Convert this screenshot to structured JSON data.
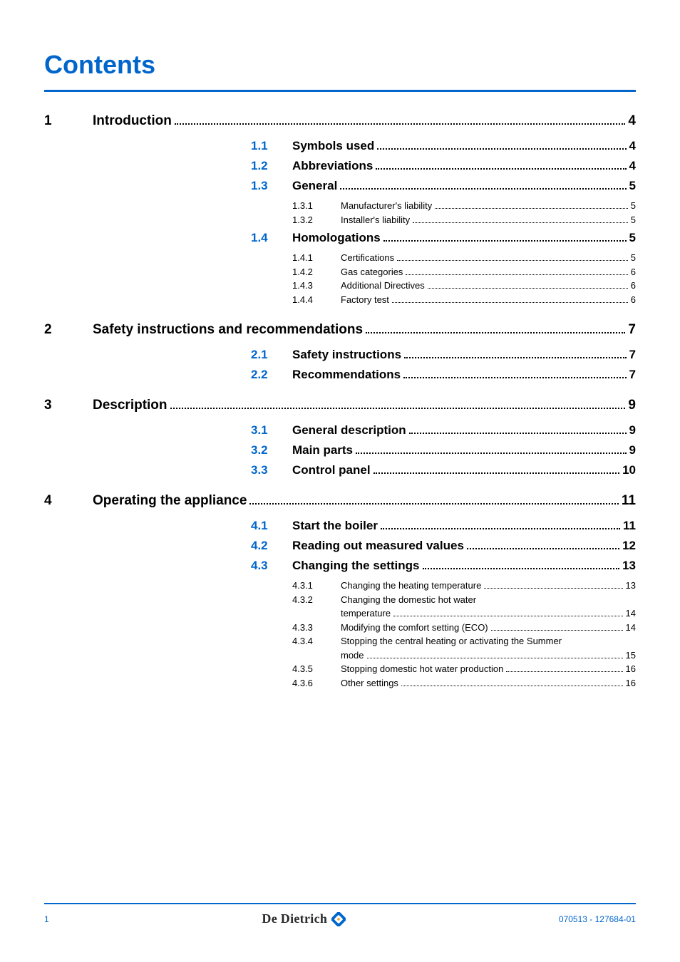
{
  "title": "Contents",
  "colors": {
    "accent": "#0066cc",
    "text": "#000000",
    "background": "#ffffff"
  },
  "typography": {
    "title_fontsize": 36,
    "lvl1_fontsize": 19,
    "lvl2_fontsize": 17,
    "lvl3_fontsize": 13,
    "footer_fontsize": 12,
    "brand_fontsize": 18
  },
  "toc": {
    "chapters": [
      {
        "num": "1",
        "label": "Introduction",
        "page": "4",
        "sections": [
          {
            "num": "1.1",
            "label": "Symbols used",
            "page": "4",
            "subs": []
          },
          {
            "num": "1.2",
            "label": "Abbreviations",
            "page": "4",
            "subs": []
          },
          {
            "num": "1.3",
            "label": "General",
            "page": "5",
            "subs": [
              {
                "num": "1.3.1",
                "label": "Manufacturer's liability",
                "page": "5"
              },
              {
                "num": "1.3.2",
                "label": "Installer's liability",
                "page": "5"
              }
            ]
          },
          {
            "num": "1.4",
            "label": "Homologations",
            "page": "5",
            "subs": [
              {
                "num": "1.4.1",
                "label": "Certifications",
                "page": "5"
              },
              {
                "num": "1.4.2",
                "label": "Gas categories",
                "page": "6"
              },
              {
                "num": "1.4.3",
                "label": "Additional Directives",
                "page": "6"
              },
              {
                "num": "1.4.4",
                "label": "Factory test",
                "page": "6"
              }
            ]
          }
        ]
      },
      {
        "num": "2",
        "label": "Safety instructions and recommendations",
        "page": "7",
        "sections": [
          {
            "num": "2.1",
            "label": "Safety instructions",
            "page": "7",
            "subs": []
          },
          {
            "num": "2.2",
            "label": "Recommendations",
            "page": "7",
            "subs": []
          }
        ]
      },
      {
        "num": "3",
        "label": "Description",
        "page": "9",
        "sections": [
          {
            "num": "3.1",
            "label": "General description",
            "page": "9",
            "subs": []
          },
          {
            "num": "3.2",
            "label": "Main parts",
            "page": "9",
            "subs": []
          },
          {
            "num": "3.3",
            "label": "Control panel",
            "page": "10",
            "subs": []
          }
        ]
      },
      {
        "num": "4",
        "label": "Operating the appliance",
        "page": "11",
        "sections": [
          {
            "num": "4.1",
            "label": "Start the boiler",
            "page": "11",
            "subs": []
          },
          {
            "num": "4.2",
            "label": "Reading out measured values",
            "page": "12",
            "subs": []
          },
          {
            "num": "4.3",
            "label": "Changing the settings",
            "page": "13",
            "subs": [
              {
                "num": "4.3.1",
                "label": "Changing the heating temperature",
                "page": "13"
              },
              {
                "num": "4.3.2",
                "label": "Changing the domestic hot water temperature",
                "page": "14"
              },
              {
                "num": "4.3.3",
                "label": "Modifying the comfort setting (ECO)",
                "page": "14"
              },
              {
                "num": "4.3.4",
                "label": "Stopping the central heating or activating the Summer mode",
                "page": "15"
              },
              {
                "num": "4.3.5",
                "label": "Stopping domestic hot water production",
                "page": "16"
              },
              {
                "num": "4.3.6",
                "label": "Other settings",
                "page": "16"
              }
            ]
          }
        ]
      }
    ]
  },
  "footer": {
    "page_number": "1",
    "brand_name": "De Dietrich",
    "doc_id": "070513 - 127684-01"
  }
}
